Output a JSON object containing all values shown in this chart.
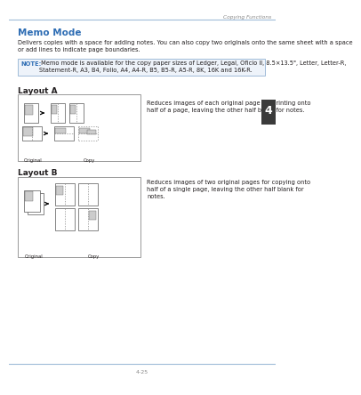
{
  "title": "Memo Mode",
  "header_right": "Copying Functions",
  "page_number": "4-25",
  "chapter_number": "4",
  "description": "Delivers copies with a space for adding notes. You can also copy two originals onto the same sheet with a space\nor add lines to indicate page boundaries.",
  "note_label": "NOTE:",
  "note_text": " Memo mode is available for the copy paper sizes of Ledger, Legal, Oficio II, 8.5×13.5\", Letter, Letter-R,\nStatement-R, A3, B4, Folio, A4, A4-R, B5, B5-R, A5-R, 8K, 16K and 16K-R.",
  "layout_a_title": "Layout A",
  "layout_a_desc": "Reduces images of each original page for printing onto\nhalf of a page, leaving the other half blank for notes.",
  "layout_b_title": "Layout B",
  "layout_b_desc": "Reduces images of two original pages for copying onto\nhalf of a single page, leaving the other half blank for\nnotes.",
  "original_label": "Original",
  "copy_label": "Copy",
  "bg_color": "#ffffff",
  "text_color": "#231f20",
  "title_color": "#2e6db4",
  "header_color": "#888888",
  "note_label_color": "#2e6db4",
  "line_color": "#a0bcd8",
  "box_border_color": "#999999",
  "tab_bg": "#3a3a3a",
  "tab_text": "#ffffff",
  "note_bg": "#eef3fa"
}
